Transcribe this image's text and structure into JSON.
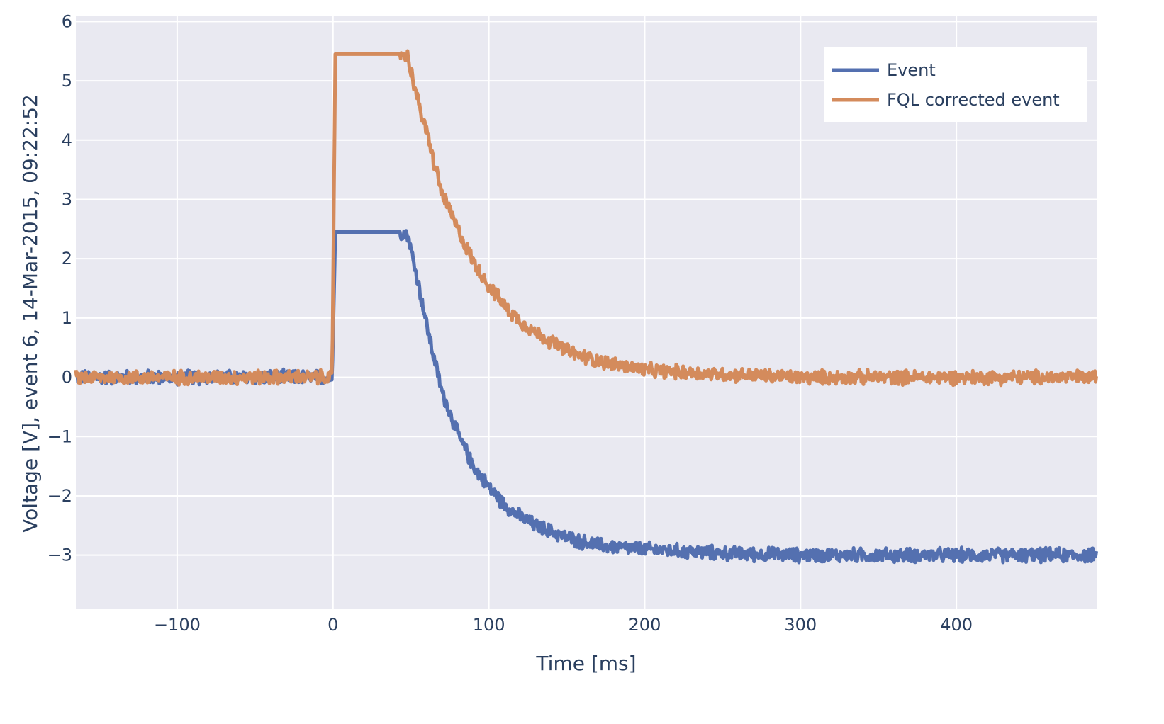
{
  "chart_data": {
    "type": "line",
    "xlabel": "Time [ms]",
    "ylabel": "Voltage [V], event 6, 14-Mar-2015, 09:22:52",
    "xlim": [
      -165,
      490
    ],
    "ylim": [
      -3.9,
      6.1
    ],
    "xticks": [
      -100,
      0,
      100,
      200,
      300,
      400
    ],
    "xtick_labels": [
      "−100",
      "0",
      "100",
      "200",
      "300",
      "400"
    ],
    "yticks": [
      -3,
      -2,
      -1,
      0,
      1,
      2,
      3,
      4,
      5,
      6
    ],
    "ytick_labels": [
      "−3",
      "−2",
      "−1",
      "0",
      "1",
      "2",
      "3",
      "4",
      "5",
      "6"
    ],
    "grid": true,
    "plot_background": "#e9e9f1",
    "legend_position": "top-right",
    "series": [
      {
        "name": "Event",
        "color": "#5470b0",
        "noise_amplitude": 0.1,
        "points": [
          [
            -165,
            0
          ],
          [
            -0.5,
            0
          ],
          [
            1.5,
            2.45
          ],
          [
            45,
            2.45
          ],
          [
            48,
            2.4
          ],
          [
            55,
            1.55
          ],
          [
            60,
            0.9
          ],
          [
            65,
            0.3
          ],
          [
            70,
            -0.25
          ],
          [
            80,
            -0.95
          ],
          [
            90,
            -1.5
          ],
          [
            100,
            -1.85
          ],
          [
            110,
            -2.15
          ],
          [
            120,
            -2.35
          ],
          [
            130,
            -2.5
          ],
          [
            140,
            -2.6
          ],
          [
            150,
            -2.7
          ],
          [
            160,
            -2.78
          ],
          [
            175,
            -2.85
          ],
          [
            200,
            -2.9
          ],
          [
            250,
            -2.97
          ],
          [
            300,
            -3.0
          ],
          [
            400,
            -3.0
          ],
          [
            490,
            -3.0
          ]
        ]
      },
      {
        "name": "FQL corrected event",
        "color": "#d48b5c",
        "noise_amplitude": 0.1,
        "points": [
          [
            -165,
            0
          ],
          [
            -0.5,
            0
          ],
          [
            1.5,
            5.45
          ],
          [
            45,
            5.45
          ],
          [
            48,
            5.4
          ],
          [
            55,
            4.6
          ],
          [
            60,
            4.15
          ],
          [
            65,
            3.6
          ],
          [
            70,
            3.1
          ],
          [
            80,
            2.5
          ],
          [
            90,
            1.95
          ],
          [
            100,
            1.55
          ],
          [
            110,
            1.2
          ],
          [
            120,
            0.95
          ],
          [
            130,
            0.75
          ],
          [
            140,
            0.6
          ],
          [
            150,
            0.45
          ],
          [
            160,
            0.35
          ],
          [
            175,
            0.25
          ],
          [
            200,
            0.12
          ],
          [
            250,
            0.05
          ],
          [
            300,
            0.0
          ],
          [
            400,
            0.0
          ],
          [
            490,
            0.0
          ]
        ]
      }
    ]
  }
}
